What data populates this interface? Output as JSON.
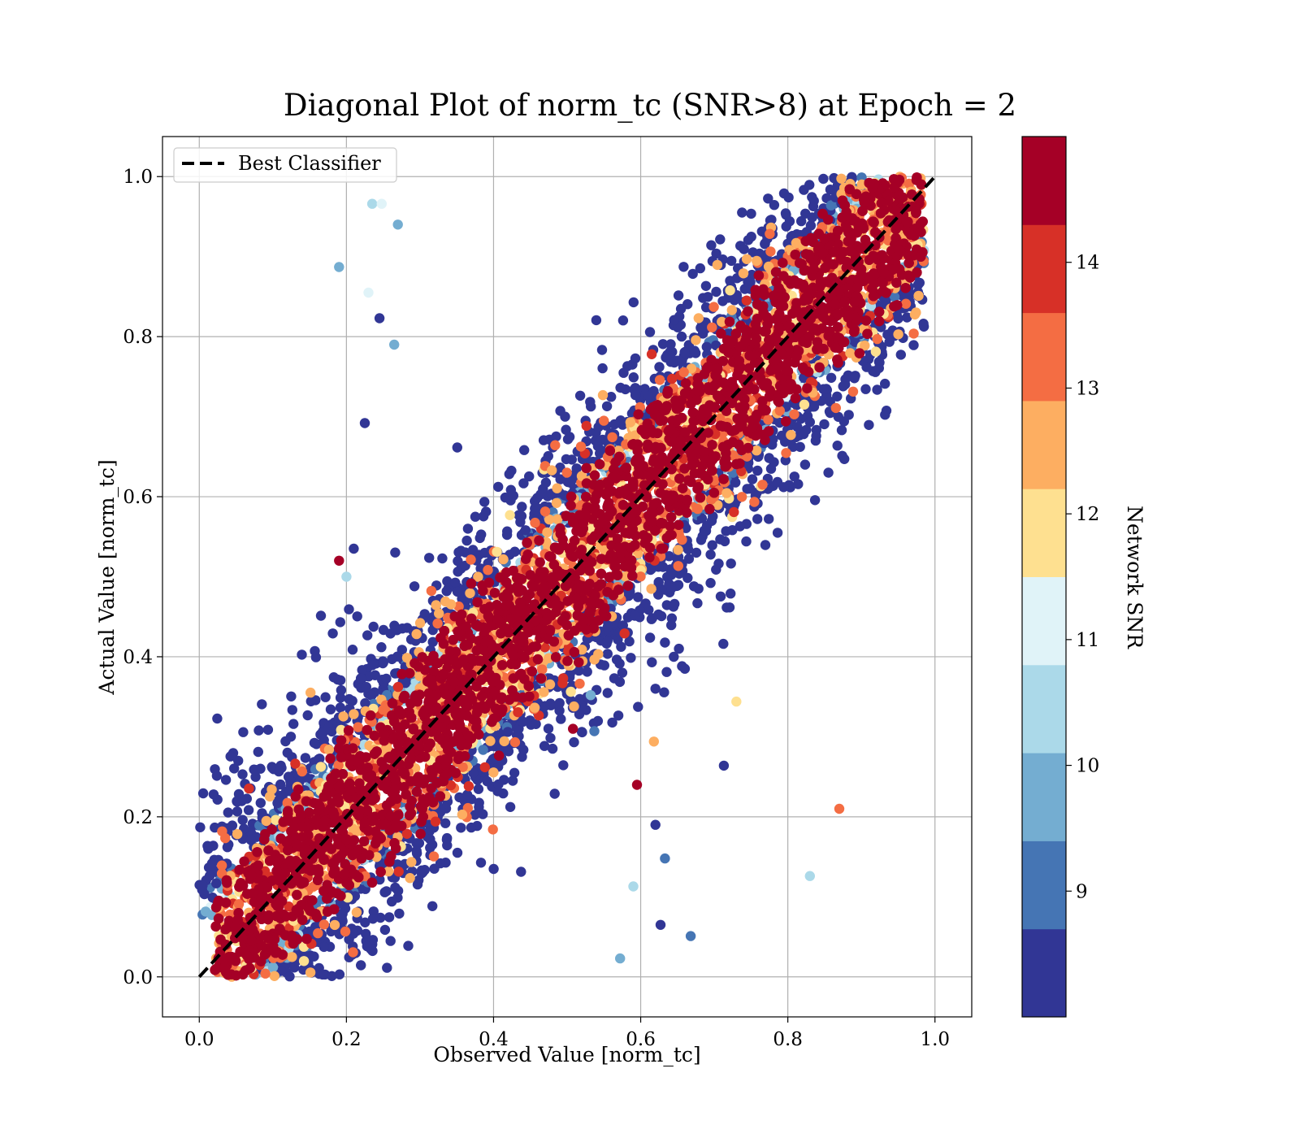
{
  "chart_data": {
    "type": "scatter",
    "title": "Diagonal Plot of norm_tc (SNR>8) at Epoch = 2",
    "xlabel": "Observed Value [norm_tc]",
    "ylabel": "Actual Value [norm_tc]",
    "xlim": [
      -0.05,
      1.05
    ],
    "ylim": [
      -0.05,
      1.05
    ],
    "x_ticks": [
      0.0,
      0.2,
      0.4,
      0.6,
      0.8,
      1.0
    ],
    "y_ticks": [
      0.0,
      0.2,
      0.4,
      0.6,
      0.8,
      1.0
    ],
    "x_tick_labels": [
      "0.0",
      "0.2",
      "0.4",
      "0.6",
      "0.8",
      "1.0"
    ],
    "y_tick_labels": [
      "0.0",
      "0.2",
      "0.4",
      "0.6",
      "0.8",
      "1.0"
    ],
    "grid": true,
    "legend": {
      "position": "top-left",
      "entries": [
        {
          "label": "Best Classifier",
          "style": "dashed",
          "color": "#000000"
        }
      ]
    },
    "reference_line": {
      "name": "Best Classifier",
      "x": [
        0.0,
        1.0
      ],
      "y": [
        0.0,
        1.0
      ]
    },
    "colorbar": {
      "label": "Network SNR",
      "range": [
        8,
        15
      ],
      "ticks": [
        9,
        10,
        11,
        12,
        13,
        14
      ],
      "tick_labels": [
        "9",
        "10",
        "11",
        "12",
        "13",
        "14"
      ],
      "colors": [
        "#313695",
        "#4575b4",
        "#74add1",
        "#abd9e9",
        "#e0f3f8",
        "#fee090",
        "#fdae61",
        "#f46d43",
        "#d73027",
        "#a50026"
      ]
    },
    "band": {
      "description_points": "dense cloud along diagonal colored by SNR",
      "core_color": "#a50026",
      "x_range": [
        0.02,
        0.98
      ],
      "y_range": [
        0.0,
        1.0
      ]
    },
    "outliers": [
      {
        "x": 0.19,
        "y": 0.887,
        "snr": 9.6
      },
      {
        "x": 0.245,
        "y": 0.823,
        "snr": 8.3
      },
      {
        "x": 0.265,
        "y": 0.79,
        "snr": 9.6
      },
      {
        "x": 0.225,
        "y": 0.692,
        "snr": 8.3
      },
      {
        "x": 0.19,
        "y": 0.52,
        "snr": 14.5
      },
      {
        "x": 0.21,
        "y": 0.535,
        "snr": 8.3
      },
      {
        "x": 0.2,
        "y": 0.5,
        "snr": 10.5
      },
      {
        "x": 0.735,
        "y": 0.563,
        "snr": 8.3
      },
      {
        "x": 0.652,
        "y": 0.41,
        "snr": 8.3
      },
      {
        "x": 0.645,
        "y": 0.4,
        "snr": 8.3
      },
      {
        "x": 0.66,
        "y": 0.385,
        "snr": 8.3
      },
      {
        "x": 0.575,
        "y": 0.38,
        "snr": 8.3
      },
      {
        "x": 0.62,
        "y": 0.36,
        "snr": 8.3
      },
      {
        "x": 0.73,
        "y": 0.344,
        "snr": 11.7
      },
      {
        "x": 0.618,
        "y": 0.294,
        "snr": 12.3
      },
      {
        "x": 0.713,
        "y": 0.264,
        "snr": 8.3
      },
      {
        "x": 0.595,
        "y": 0.24,
        "snr": 14.5
      },
      {
        "x": 0.87,
        "y": 0.21,
        "snr": 13.2
      },
      {
        "x": 0.62,
        "y": 0.19,
        "snr": 8.3
      },
      {
        "x": 0.633,
        "y": 0.148,
        "snr": 9.3
      },
      {
        "x": 0.83,
        "y": 0.126,
        "snr": 10.5
      },
      {
        "x": 0.59,
        "y": 0.113,
        "snr": 10.5
      },
      {
        "x": 0.627,
        "y": 0.065,
        "snr": 8.3
      },
      {
        "x": 0.668,
        "y": 0.051,
        "snr": 9.3
      },
      {
        "x": 0.572,
        "y": 0.023,
        "snr": 9.6
      },
      {
        "x": 0.235,
        "y": 0.966,
        "snr": 10.5
      },
      {
        "x": 0.248,
        "y": 0.966,
        "snr": 11.0
      },
      {
        "x": 0.27,
        "y": 0.94,
        "snr": 9.6
      },
      {
        "x": 0.23,
        "y": 0.855,
        "snr": 11.0
      },
      {
        "x": 0.555,
        "y": 0.437,
        "snr": 8.3
      },
      {
        "x": 0.555,
        "y": 0.42,
        "snr": 8.3
      },
      {
        "x": 0.52,
        "y": 0.306,
        "snr": 8.3
      },
      {
        "x": 0.537,
        "y": 0.307,
        "snr": 9.3
      },
      {
        "x": 0.532,
        "y": 0.352,
        "snr": 9.6
      },
      {
        "x": 0.508,
        "y": 0.31,
        "snr": 14.5
      }
    ]
  }
}
